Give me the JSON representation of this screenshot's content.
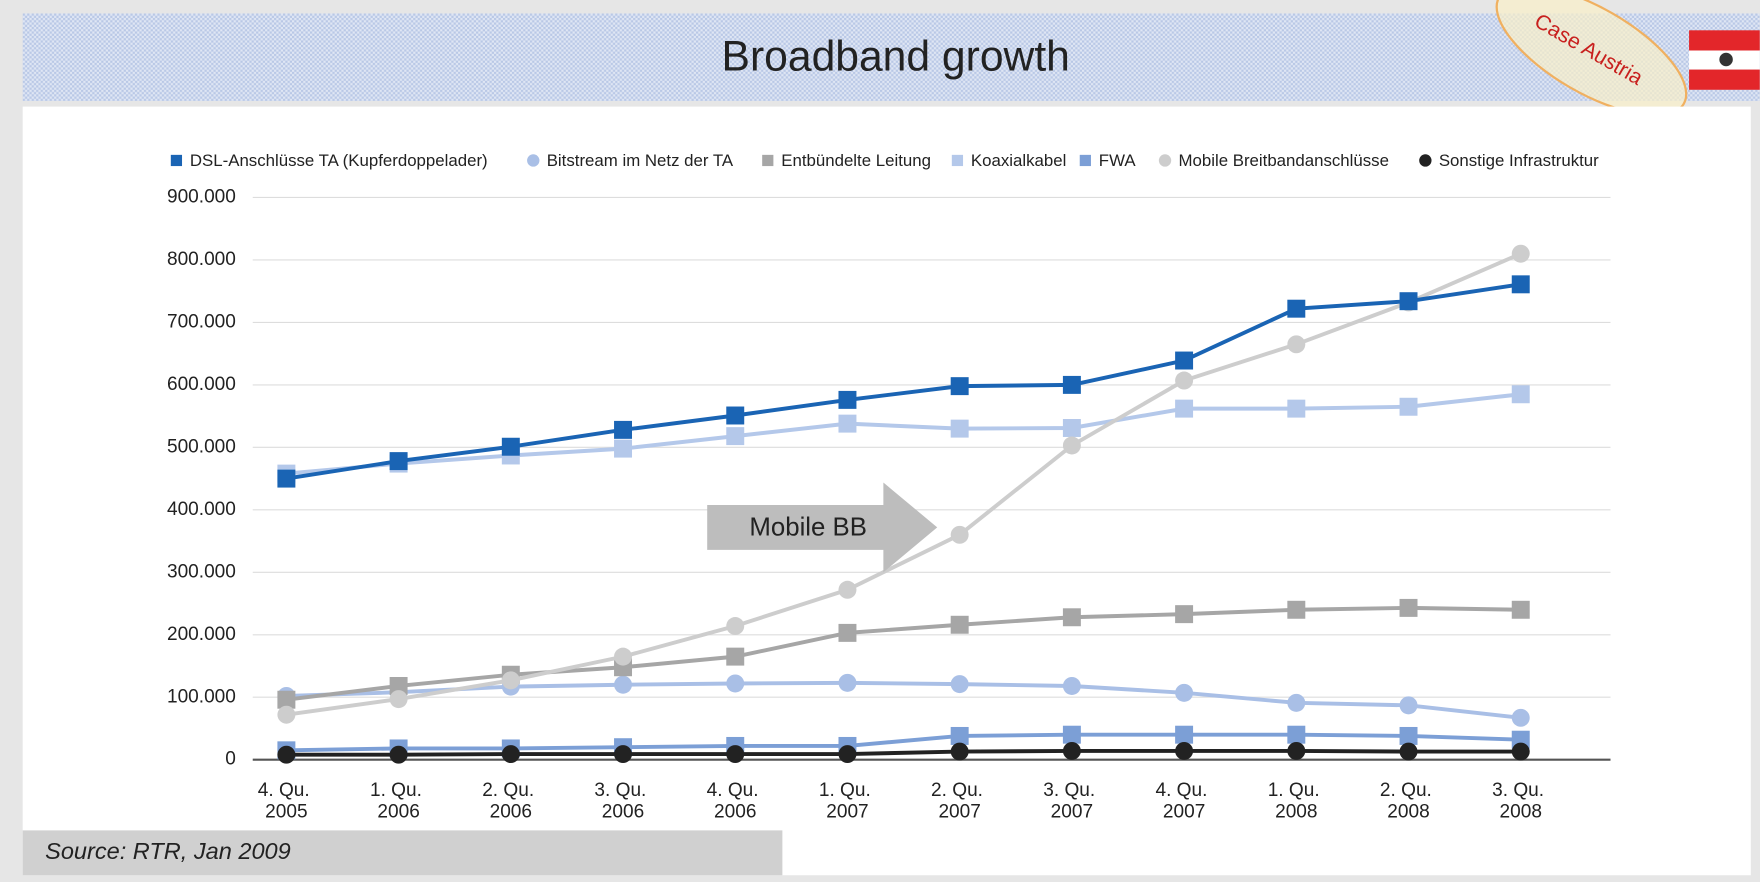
{
  "header": {
    "title": "Broadband growth",
    "badge": "Case Austria"
  },
  "chart_data": {
    "type": "line",
    "categories": [
      "4. Qu. 2005",
      "1. Qu. 2006",
      "2. Qu. 2006",
      "3. Qu. 2006",
      "4. Qu. 2006",
      "1. Qu. 2007",
      "2. Qu. 2007",
      "3. Qu. 2007",
      "4. Qu. 2007",
      "1. Qu. 2008",
      "2. Qu. 2008",
      "3. Qu. 2008"
    ],
    "ylim": [
      0,
      900000
    ],
    "yticks": [
      0,
      {
        "value": 100000,
        "label": "100.000"
      },
      {
        "value": 200000,
        "label": "200.000"
      },
      {
        "value": 300000,
        "label": "300.000"
      },
      {
        "value": 400000,
        "label": "400.000"
      },
      {
        "value": 500000,
        "label": "500.000"
      },
      {
        "value": 600000,
        "label": "600.000"
      },
      {
        "value": 700000,
        "label": "700.000"
      },
      {
        "value": 800000,
        "label": "800.000"
      },
      {
        "value": 900000,
        "label": "900.000"
      }
    ],
    "grid": true,
    "series": [
      {
        "name": "DSL-Anschlüsse TA (Kupferdoppelader)",
        "color": "#1a64b4",
        "marker": "square",
        "values": [
          450000,
          478000,
          501000,
          528000,
          551000,
          576000,
          598000,
          600000,
          639000,
          722000,
          734000,
          761000
        ]
      },
      {
        "name": "Bitstream im Netz der TA",
        "color": "#a9bfe6",
        "marker": "circle",
        "values": [
          102000,
          108000,
          117000,
          120000,
          122000,
          123000,
          121000,
          118000,
          107000,
          91000,
          87000,
          67000
        ]
      },
      {
        "name": "Entbündelte Leitung",
        "color": "#a6a6a6",
        "marker": "square",
        "values": [
          96000,
          118000,
          136000,
          148000,
          165000,
          203000,
          216000,
          228000,
          233000,
          240000,
          243000,
          240000
        ]
      },
      {
        "name": "Koaxialkabel",
        "color": "#b4c8ea",
        "marker": "square",
        "values": [
          458000,
          474000,
          487000,
          498000,
          518000,
          538000,
          530000,
          531000,
          562000,
          562000,
          565000,
          585000
        ]
      },
      {
        "name": "FWA",
        "color": "#7c9fd6",
        "marker": "square",
        "values": [
          15000,
          18000,
          18000,
          20000,
          22000,
          22000,
          38000,
          40000,
          40000,
          40000,
          38000,
          32000
        ]
      },
      {
        "name": "Mobile Breitbandanschlüsse",
        "color": "#cdcdcd",
        "marker": "circle",
        "values": [
          72000,
          97000,
          127000,
          165000,
          214000,
          272000,
          360000,
          503000,
          607000,
          665000,
          732000,
          810000
        ]
      },
      {
        "name": "Sonstige Infrastruktur",
        "color": "#222222",
        "marker": "circle",
        "values": [
          8000,
          8000,
          9000,
          9000,
          9000,
          9000,
          13000,
          14000,
          14000,
          14000,
          13000,
          13000
        ]
      }
    ],
    "annotation": "Mobile BB",
    "source": "Source: RTR, Jan 2009"
  }
}
